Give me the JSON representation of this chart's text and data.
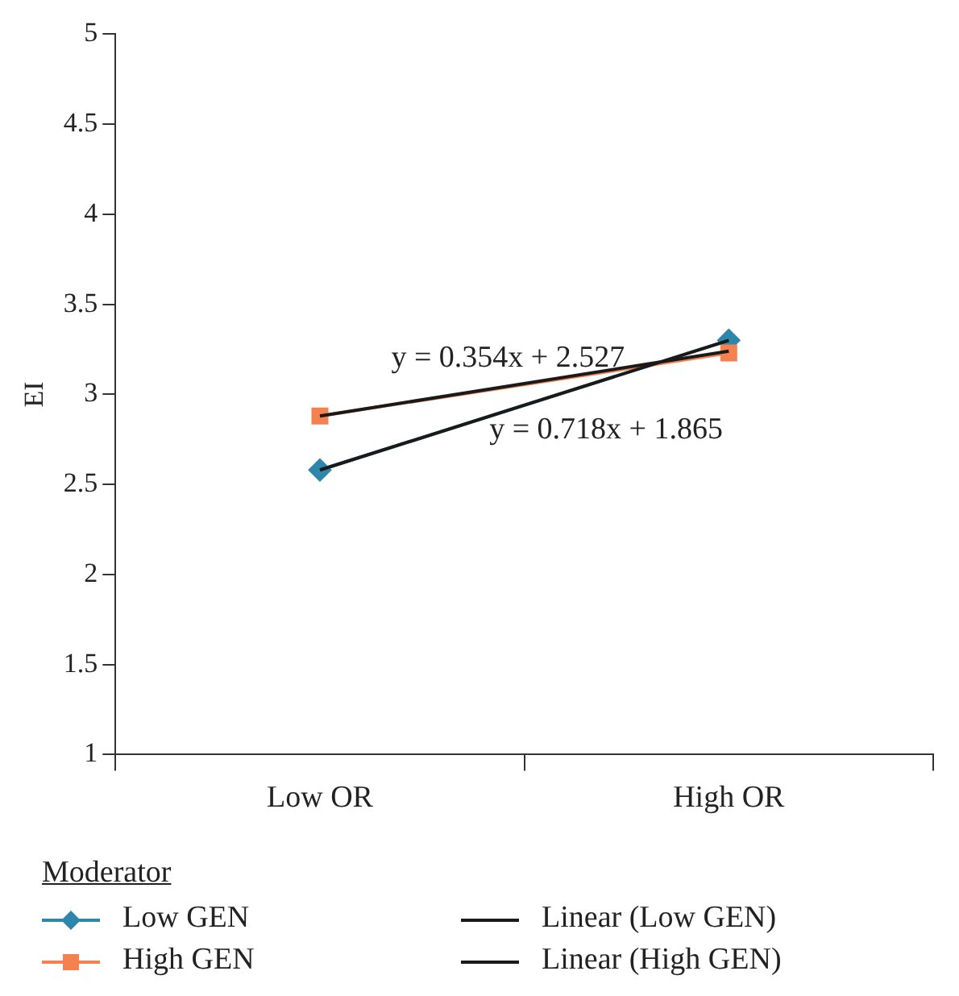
{
  "chart_data": {
    "type": "line",
    "ylabel": "EI",
    "categories": [
      "Low OR",
      "High OR"
    ],
    "ylim": [
      1,
      5
    ],
    "yticks": [
      1,
      1.5,
      2,
      2.5,
      3,
      3.5,
      4,
      4.5,
      5
    ],
    "grid": false,
    "legend": "bottom",
    "legend_title": "Moderator",
    "series": [
      {
        "name": "Low GEN",
        "color": "#2e86ab",
        "marker": "diamond",
        "values": [
          2.58,
          3.3
        ]
      },
      {
        "name": "High GEN",
        "color": "#f4814f",
        "marker": "square",
        "values": [
          2.88,
          3.23
        ]
      },
      {
        "name": "Linear (Low GEN)",
        "color": "#1a1a1a",
        "marker": "none",
        "values": [
          2.58,
          3.3
        ]
      },
      {
        "name": "Linear (High GEN)",
        "color": "#1a1a1a",
        "marker": "none",
        "values": [
          2.88,
          3.24
        ]
      }
    ],
    "annotations": [
      "y = 0.354x + 2.527",
      "y = 0.718x + 1.865"
    ]
  }
}
